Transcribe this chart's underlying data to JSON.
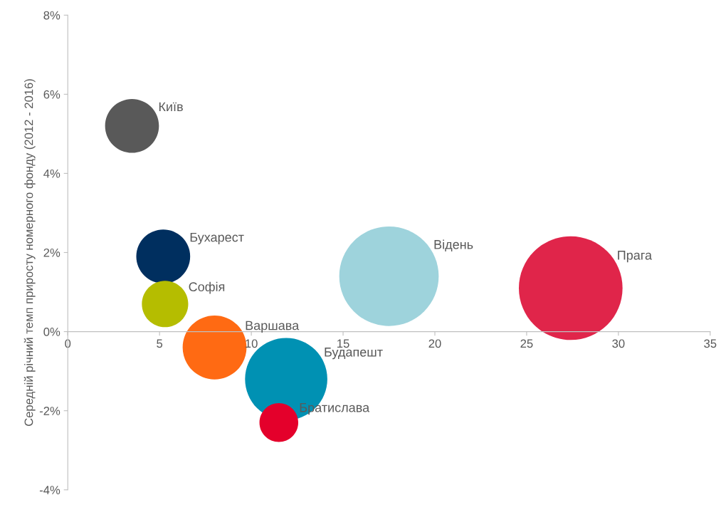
{
  "chart_data": {
    "type": "bubble",
    "ylabel": "Середній річний темп приросту номерного фонду (2012 - 2016)",
    "xlim": [
      0,
      35
    ],
    "xticks": [
      0,
      5,
      10,
      15,
      20,
      25,
      30,
      35
    ],
    "ylim": [
      -4,
      8
    ],
    "yticks": [
      {
        "value": -4,
        "label": "-4%"
      },
      {
        "value": -2,
        "label": "-2%"
      },
      {
        "value": 0,
        "label": "0%"
      },
      {
        "value": 2,
        "label": "2%"
      },
      {
        "value": 4,
        "label": "4%"
      },
      {
        "value": 6,
        "label": "6%"
      },
      {
        "value": 8,
        "label": "8%"
      }
    ],
    "grid": false,
    "legend": false,
    "series": [
      {
        "name": "Київ",
        "color": "#595959",
        "x": [
          3.5
        ],
        "values": [
          5.2
        ],
        "sizes": [
          0.27
        ]
      },
      {
        "name": "Бухарест",
        "color": "#002f5f",
        "x": [
          5.2
        ],
        "values": [
          1.9
        ],
        "sizes": [
          0.27
        ]
      },
      {
        "name": "Софія",
        "color": "#b5bd00",
        "x": [
          5.3
        ],
        "values": [
          0.7
        ],
        "sizes": [
          0.2
        ]
      },
      {
        "name": "Варшава",
        "color": "#ff6a13",
        "x": [
          8.0
        ],
        "values": [
          -0.4
        ],
        "sizes": [
          0.38
        ]
      },
      {
        "name": "Будапешт",
        "color": "#0091b3",
        "x": [
          11.9
        ],
        "values": [
          -1.2
        ],
        "sizes": [
          0.63
        ]
      },
      {
        "name": "Братислава",
        "color": "#e4002b",
        "x": [
          11.5
        ],
        "values": [
          -2.3
        ],
        "sizes": [
          0.14
        ]
      },
      {
        "name": "Відень",
        "color": "#9ed3dc",
        "x": [
          17.5
        ],
        "values": [
          1.4
        ],
        "sizes": [
          0.92
        ]
      },
      {
        "name": "Прага",
        "color": "#e0254a",
        "x": [
          27.4
        ],
        "values": [
          1.1
        ],
        "sizes": [
          1
        ]
      }
    ]
  }
}
